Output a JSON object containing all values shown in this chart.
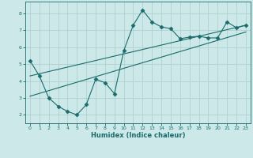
{
  "xlabel": "Humidex (Indice chaleur)",
  "ylabel": "",
  "bg_color": "#cce8e8",
  "grid_color": "#b0d0d0",
  "line_color": "#1a6b6b",
  "xlim": [
    -0.5,
    23.5
  ],
  "ylim": [
    1.5,
    8.7
  ],
  "xticks": [
    0,
    1,
    2,
    3,
    4,
    5,
    6,
    7,
    8,
    9,
    10,
    11,
    12,
    13,
    14,
    15,
    16,
    17,
    18,
    19,
    20,
    21,
    22,
    23
  ],
  "yticks": [
    2,
    3,
    4,
    5,
    6,
    7,
    8
  ],
  "main_x": [
    0,
    1,
    2,
    3,
    4,
    5,
    6,
    7,
    8,
    9,
    10,
    11,
    12,
    13,
    14,
    15,
    16,
    17,
    18,
    19,
    20,
    21,
    22,
    23
  ],
  "main_y": [
    5.2,
    4.3,
    3.0,
    2.5,
    2.2,
    2.0,
    2.6,
    4.1,
    3.9,
    3.25,
    5.8,
    7.3,
    8.2,
    7.5,
    7.2,
    7.1,
    6.5,
    6.6,
    6.65,
    6.55,
    6.55,
    7.5,
    7.15,
    7.3
  ],
  "trend1_x": [
    0,
    23
  ],
  "trend1_y": [
    4.3,
    7.3
  ],
  "trend2_x": [
    0,
    23
  ],
  "trend2_y": [
    3.1,
    6.9
  ],
  "marker": "D",
  "marker_size": 2.5,
  "line_width": 0.8
}
